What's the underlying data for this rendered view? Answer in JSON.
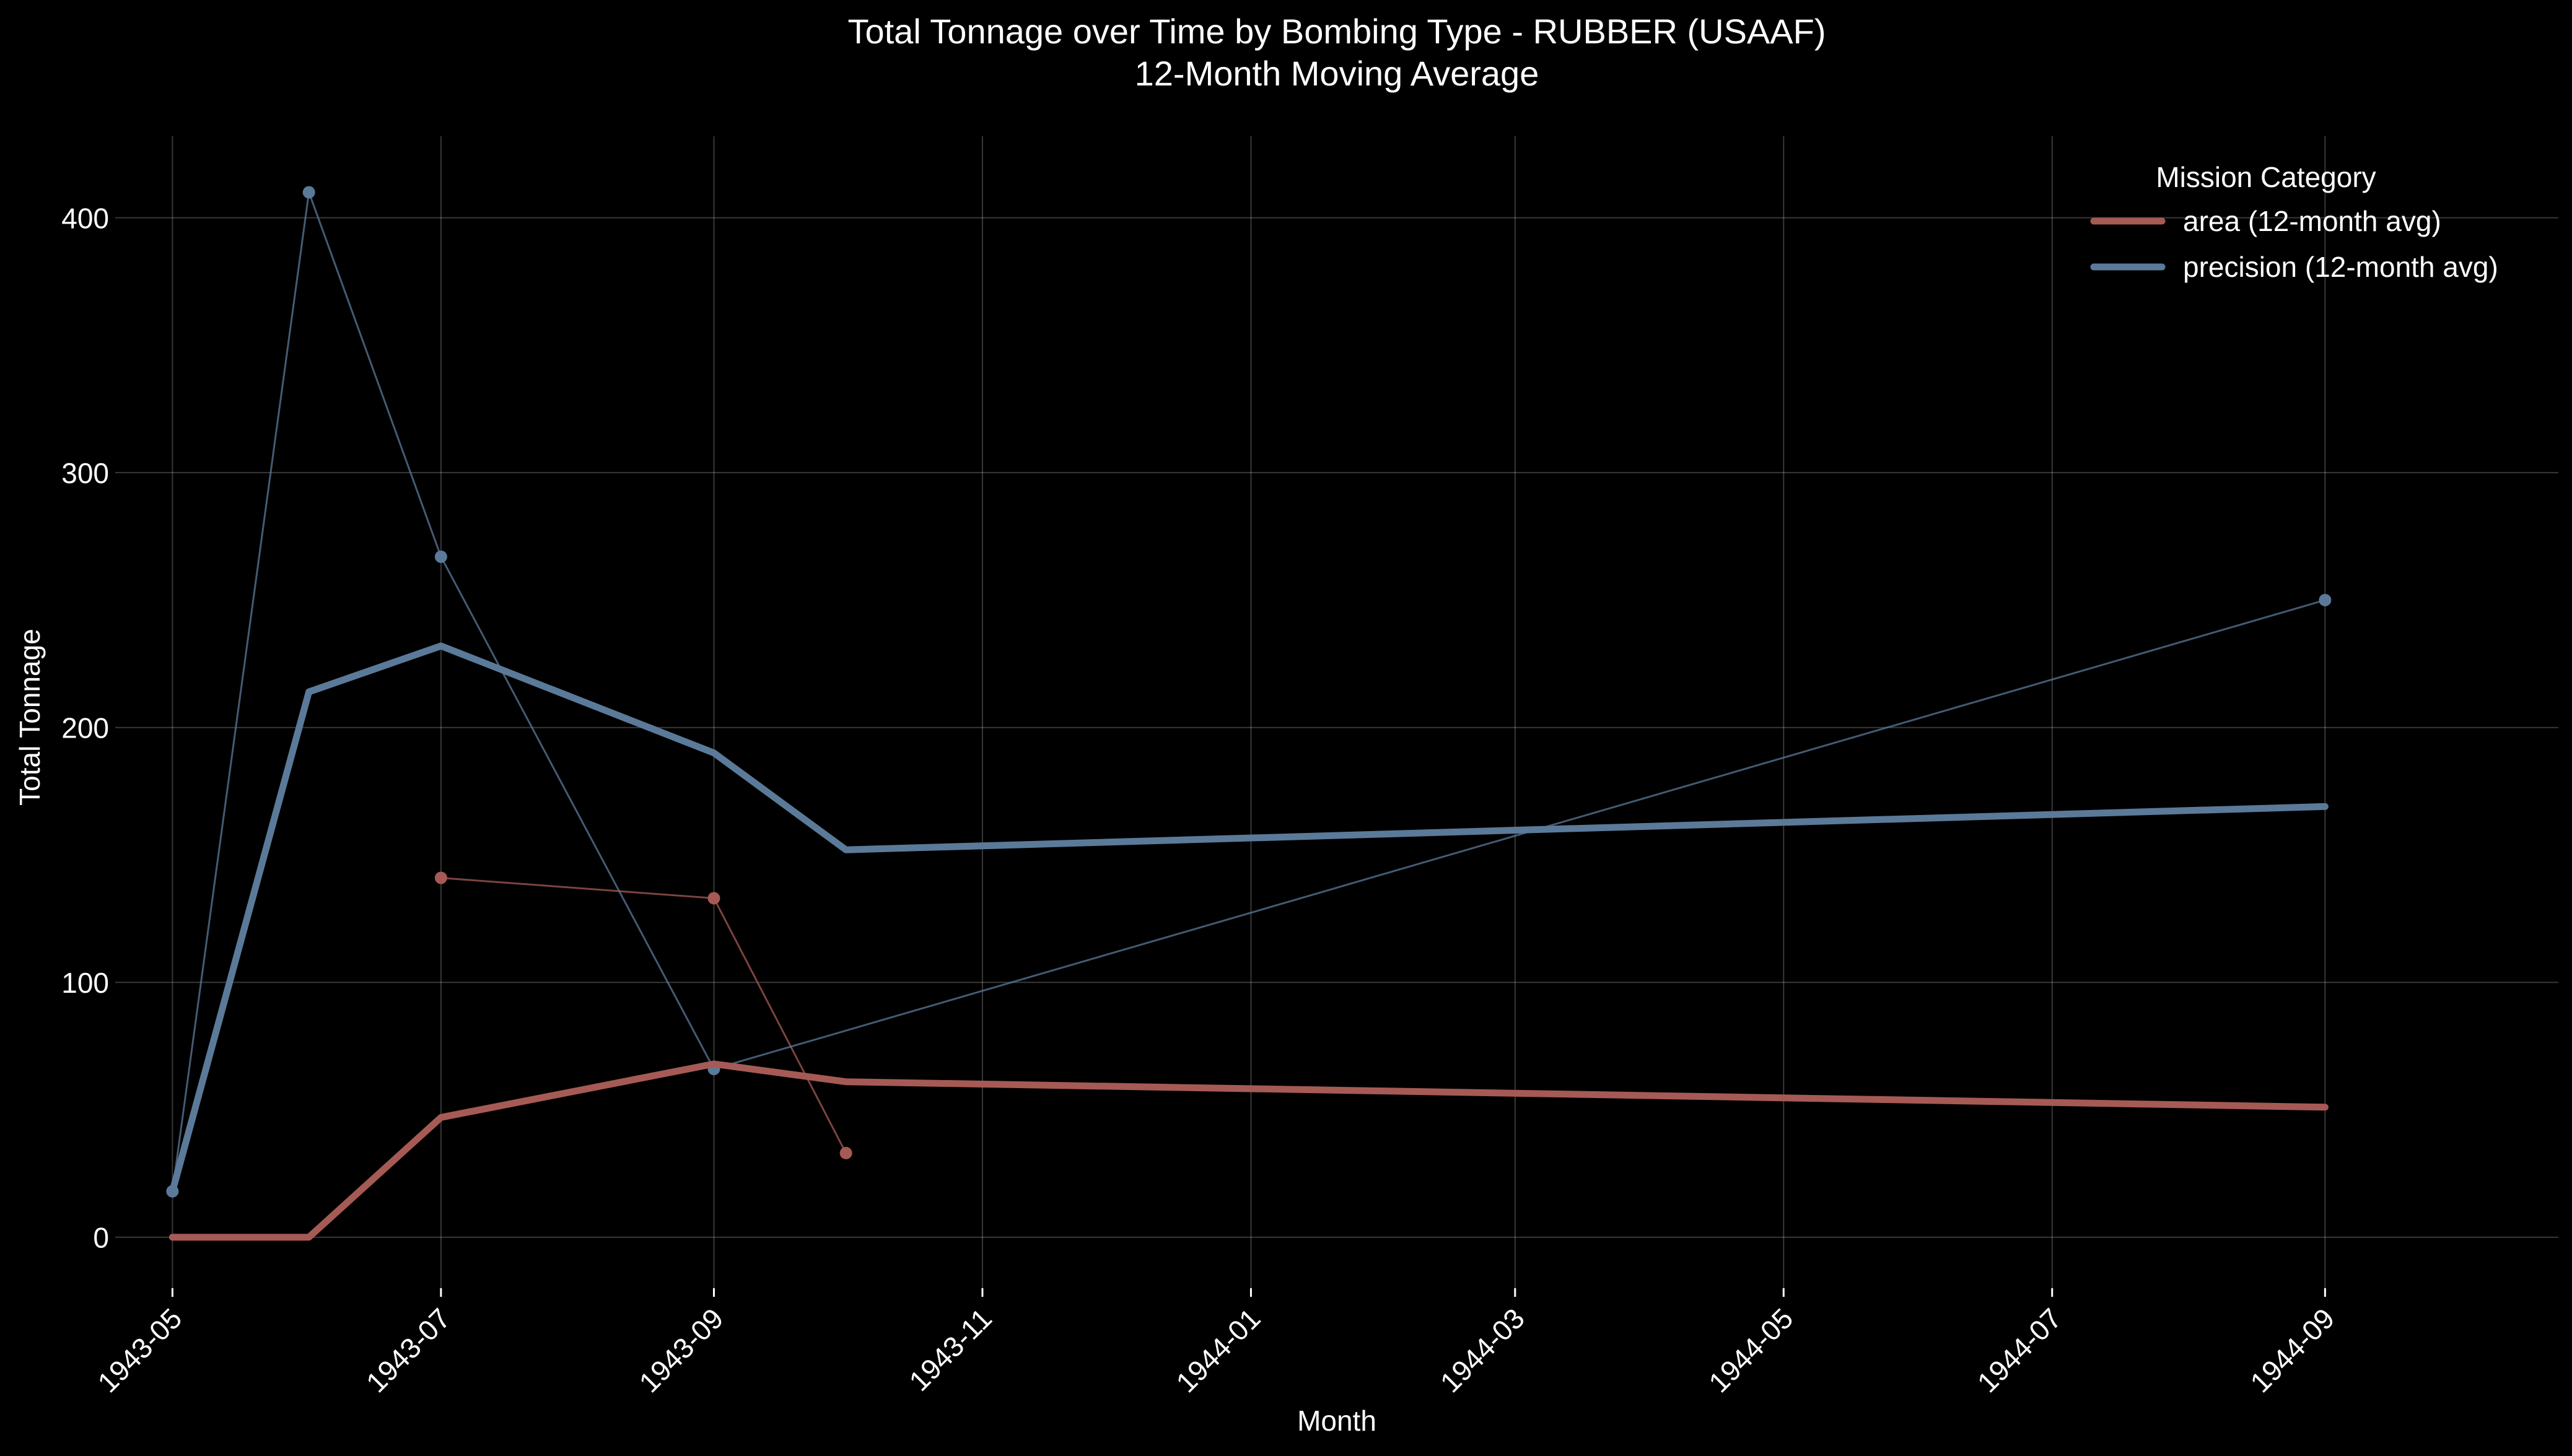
{
  "chart_data": {
    "type": "line",
    "title": "Total Tonnage over Time by Bombing Type - RUBBER (USAAF)",
    "subtitle": "12-Month Moving Average",
    "xlabel": "Month",
    "ylabel": "Total Tonnage",
    "x_ticks": [
      "1943-05",
      "1943-07",
      "1943-09",
      "1943-11",
      "1944-01",
      "1944-03",
      "1944-05",
      "1944-07",
      "1944-09"
    ],
    "y_ticks": [
      0,
      100,
      200,
      300,
      400
    ],
    "ylim": [
      -20,
      432
    ],
    "xlim": [
      "1943-04-18",
      "1944-10-24"
    ],
    "grid": true,
    "legend": {
      "title": "Mission Category",
      "position": "top-right"
    },
    "series": [
      {
        "name": "area (12-month avg)",
        "kind": "moving-average",
        "color": "#a65a55",
        "x": [
          "1943-05-01",
          "1943-06-01",
          "1943-07-01",
          "1943-09-01",
          "1943-10-01",
          "1944-09-01"
        ],
        "values": [
          0,
          0,
          47,
          68,
          61,
          51
        ]
      },
      {
        "name": "precision (12-month avg)",
        "kind": "moving-average",
        "color": "#5b7a99",
        "x": [
          "1943-05-01",
          "1943-06-01",
          "1943-07-01",
          "1943-09-01",
          "1943-10-01",
          "1944-09-01"
        ],
        "values": [
          18,
          214,
          232,
          190,
          152,
          169
        ]
      },
      {
        "kind": "raw",
        "color": "#a65a55",
        "x": [
          "1943-07-01",
          "1943-09-01",
          "1943-10-01"
        ],
        "values": [
          141,
          133,
          33
        ]
      },
      {
        "kind": "raw",
        "color": "#5b7a99",
        "x": [
          "1943-05-01",
          "1943-06-01",
          "1943-07-01",
          "1943-09-01",
          "1944-09-01"
        ],
        "values": [
          18,
          410,
          267,
          66,
          250
        ]
      }
    ]
  }
}
